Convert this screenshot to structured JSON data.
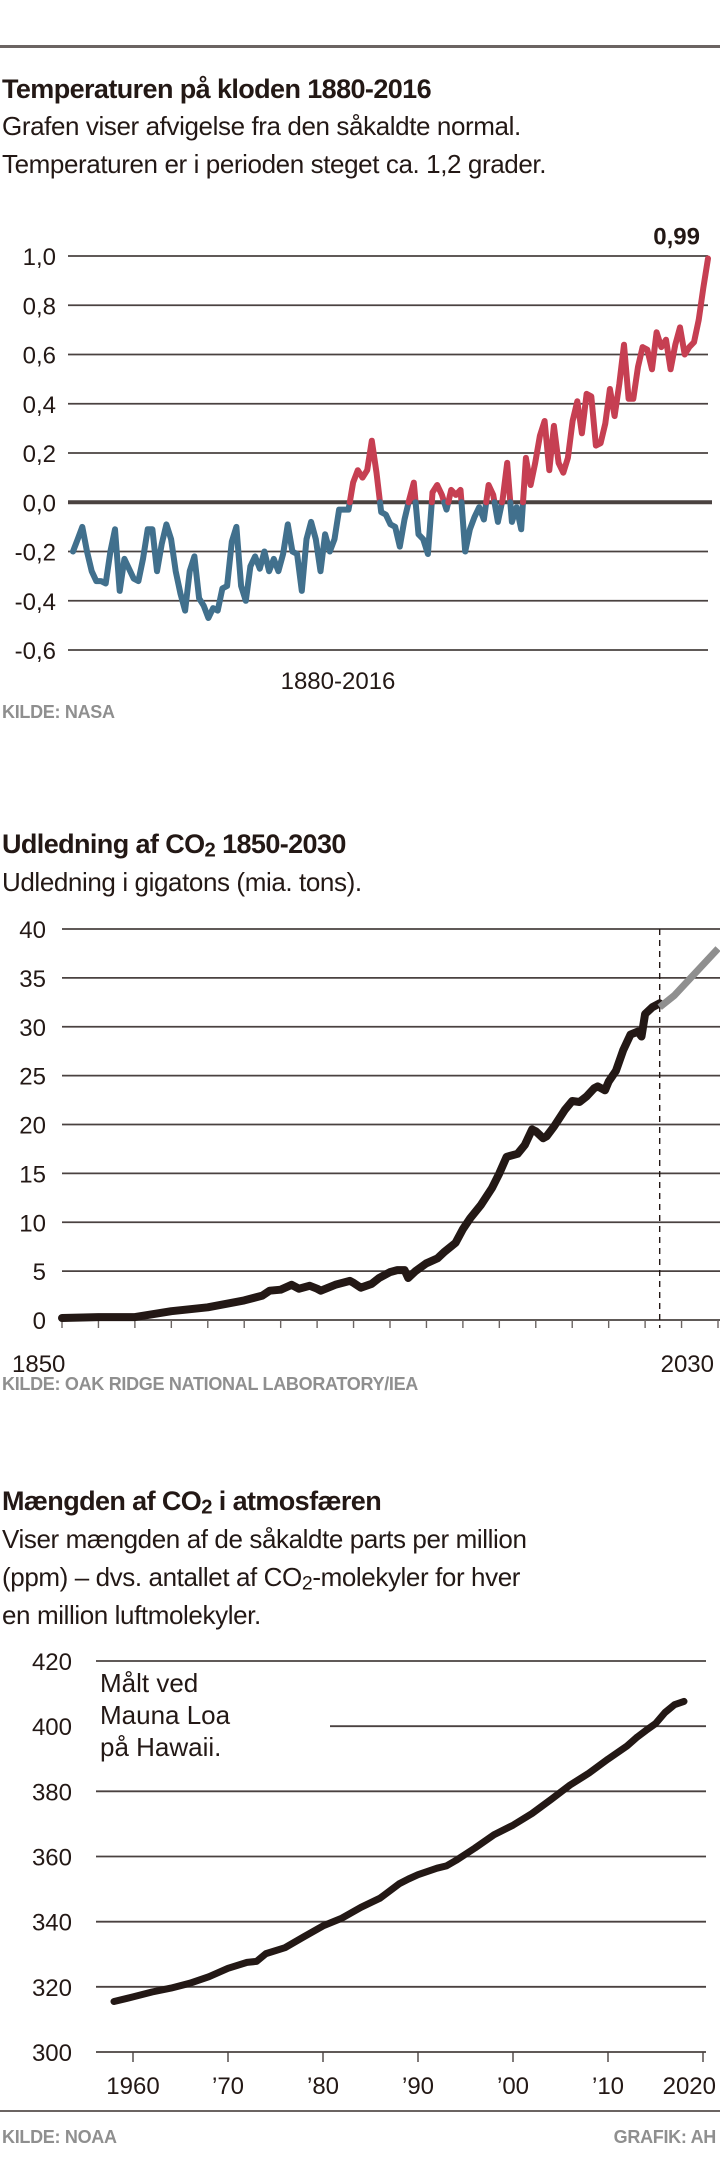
{
  "charts": {
    "temperature": {
      "title": "Temperaturen på kloden 1880-2016",
      "subtitle_lines": [
        "Grafen viser afvigelse fra den såkaldte normal.",
        "Temperaturen er i perioden steget ca. 1,2 grader."
      ],
      "source": "KILDE: NASA"
    },
    "emissions": {
      "title_prefix": "Udledning af CO",
      "title_sub": "2",
      "title_suffix": " 1850-2030",
      "subtitle": "Udledning i gigatons (mia. tons).",
      "source": "KILDE: OAK RIDGE NATIONAL LABORATORY/IEA"
    },
    "atmosphere": {
      "title_prefix": "Mængden af CO",
      "title_sub": "2",
      "title_suffix": " i atmosfæren",
      "subtitle_line1": "Viser mængden af de såkaldte parts per million",
      "subtitle_line2_prefix": "(ppm) – dvs. antallet af CO",
      "subtitle_line2_sub": "2",
      "subtitle_line2_suffix": "-molekyler for hver",
      "subtitle_line3": "en million luftmolekyler.",
      "source": "KILDE: NOAA",
      "credit": "GRAFIK: AH"
    }
  },
  "chart_data": [
    {
      "id": "temperature",
      "type": "line",
      "title": "Temperaturen på kloden 1880-2016",
      "xlabel": "1880-2016",
      "ylabel": "",
      "ylim": [
        -0.6,
        1.0
      ],
      "yticks": [
        1.0,
        0.8,
        0.6,
        0.4,
        0.2,
        0.0,
        -0.2,
        -0.4,
        -0.6
      ],
      "ytick_labels": [
        "1,0",
        "0,8",
        "0,6",
        "0,4",
        "0,2",
        "0,0",
        "-0,2",
        "-0,4",
        "-0,6"
      ],
      "xlim": [
        1880,
        2016
      ],
      "grid": true,
      "colors": {
        "above_zero": "#C63F52",
        "below_zero": "#41708D"
      },
      "annotations": [
        {
          "x": 2016,
          "y": 0.99,
          "text": "0,99"
        }
      ],
      "x_start": 1880,
      "values": [
        -0.2,
        -0.15,
        -0.1,
        -0.2,
        -0.28,
        -0.32,
        -0.32,
        -0.33,
        -0.2,
        -0.11,
        -0.36,
        -0.23,
        -0.27,
        -0.31,
        -0.32,
        -0.23,
        -0.11,
        -0.11,
        -0.28,
        -0.17,
        -0.09,
        -0.15,
        -0.28,
        -0.37,
        -0.44,
        -0.28,
        -0.22,
        -0.39,
        -0.42,
        -0.47,
        -0.43,
        -0.44,
        -0.35,
        -0.34,
        -0.16,
        -0.1,
        -0.34,
        -0.4,
        -0.26,
        -0.22,
        -0.27,
        -0.2,
        -0.28,
        -0.23,
        -0.28,
        -0.21,
        -0.09,
        -0.2,
        -0.21,
        -0.36,
        -0.15,
        -0.08,
        -0.15,
        -0.28,
        -0.13,
        -0.2,
        -0.15,
        -0.03,
        -0.03,
        -0.03,
        0.08,
        0.13,
        0.1,
        0.13,
        0.25,
        0.12,
        -0.04,
        -0.05,
        -0.09,
        -0.1,
        -0.18,
        -0.07,
        0.01,
        0.08,
        -0.13,
        -0.15,
        -0.21,
        0.04,
        0.07,
        0.03,
        -0.03,
        0.05,
        0.03,
        0.05,
        -0.2,
        -0.11,
        -0.06,
        -0.02,
        -0.07,
        0.07,
        0.03,
        -0.08,
        0.01,
        0.16,
        -0.08,
        -0.02,
        -0.11,
        0.18,
        0.07,
        0.16,
        0.27,
        0.33,
        0.13,
        0.31,
        0.16,
        0.12,
        0.18,
        0.33,
        0.41,
        0.28,
        0.44,
        0.43,
        0.23,
        0.24,
        0.32,
        0.46,
        0.35,
        0.48,
        0.64,
        0.42,
        0.42,
        0.55,
        0.63,
        0.62,
        0.54,
        0.69,
        0.63,
        0.66,
        0.54,
        0.64,
        0.71,
        0.6,
        0.63,
        0.65,
        0.74,
        0.87,
        0.99
      ]
    },
    {
      "id": "emissions",
      "type": "line",
      "title": "Udledning af CO2 1850-2030",
      "subtitle": "Udledning i gigatons (mia. tons).",
      "xlabel": "",
      "ylabel": "",
      "xlim": [
        1850,
        2030
      ],
      "ylim": [
        0,
        40
      ],
      "yticks": [
        0,
        5,
        10,
        15,
        20,
        25,
        30,
        35,
        40
      ],
      "xtick_labels": [
        "1850",
        "2030"
      ],
      "xtick_step": 10,
      "grid": true,
      "divider_year": 2014,
      "series": [
        {
          "name": "historical",
          "color": "#231815",
          "x": [
            1850,
            1860,
            1870,
            1880,
            1890,
            1900,
            1905,
            1907,
            1910,
            1913,
            1915,
            1918,
            1920,
            1921,
            1925,
            1929,
            1930,
            1932,
            1935,
            1937,
            1940,
            1942,
            1944,
            1945,
            1947,
            1950,
            1953,
            1955,
            1958,
            1960,
            1962,
            1965,
            1968,
            1970,
            1972,
            1975,
            1977,
            1979,
            1980,
            1982,
            1983,
            1985,
            1988,
            1990,
            1992,
            1994,
            1996,
            1997,
            1999,
            2000,
            2002,
            2004,
            2006,
            2008,
            2009,
            2010,
            2012,
            2014
          ],
          "y": [
            0.2,
            0.3,
            0.3,
            0.9,
            1.3,
            2.0,
            2.5,
            3.0,
            3.1,
            3.6,
            3.2,
            3.5,
            3.2,
            3.0,
            3.6,
            4.0,
            3.8,
            3.3,
            3.7,
            4.3,
            4.9,
            5.1,
            5.1,
            4.3,
            5.0,
            5.8,
            6.3,
            7.0,
            7.9,
            9.3,
            10.4,
            11.8,
            13.5,
            15.0,
            16.7,
            17.0,
            17.9,
            19.5,
            19.3,
            18.6,
            18.8,
            19.8,
            21.5,
            22.4,
            22.3,
            22.9,
            23.7,
            23.9,
            23.5,
            24.4,
            25.5,
            27.6,
            29.2,
            29.5,
            29.0,
            31.3,
            32.0,
            32.4
          ]
        },
        {
          "name": "projection",
          "color": "#8f8f8f",
          "x": [
            2014,
            2018,
            2030
          ],
          "y": [
            32.0,
            33.2,
            38.0
          ]
        }
      ]
    },
    {
      "id": "atmosphere",
      "type": "line",
      "title": "Mængden af CO2 i atmosfæren",
      "xlabel": "",
      "ylabel": "",
      "xlim": [
        1956,
        2020
      ],
      "ylim": [
        300,
        420
      ],
      "yticks": [
        300,
        320,
        340,
        360,
        380,
        400,
        420
      ],
      "xticks": [
        1960,
        1970,
        1980,
        1990,
        2000,
        2010,
        2020
      ],
      "xtick_labels": [
        "1960",
        "’70",
        "’80",
        "’90",
        "’00",
        "’10",
        "2020"
      ],
      "grid": true,
      "annotation_lines": [
        "Målt ved",
        "Mauna Loa",
        "på Hawaii."
      ],
      "series": [
        {
          "name": "Mauna Loa CO2 (ppm)",
          "color": "#231815",
          "x": [
            1958,
            1960,
            1962,
            1964,
            1966,
            1968,
            1970,
            1972,
            1973,
            1974,
            1976,
            1978,
            1980,
            1982,
            1984,
            1986,
            1988,
            1989,
            1990,
            1992,
            1993,
            1994,
            1996,
            1998,
            2000,
            2002,
            2004,
            2006,
            2008,
            2010,
            2012,
            2013,
            2014,
            2015,
            2016,
            2017,
            2018
          ],
          "y": [
            315.5,
            316.9,
            318.4,
            319.6,
            321.1,
            323.1,
            325.7,
            327.5,
            327.8,
            330.2,
            332.0,
            335.4,
            338.7,
            341.1,
            344.4,
            347.2,
            351.6,
            353.1,
            354.4,
            356.4,
            357.1,
            358.8,
            362.6,
            366.7,
            369.6,
            373.2,
            377.5,
            381.9,
            385.6,
            389.9,
            393.9,
            396.5,
            398.7,
            400.8,
            404.2,
            406.6,
            407.6
          ]
        }
      ]
    }
  ]
}
